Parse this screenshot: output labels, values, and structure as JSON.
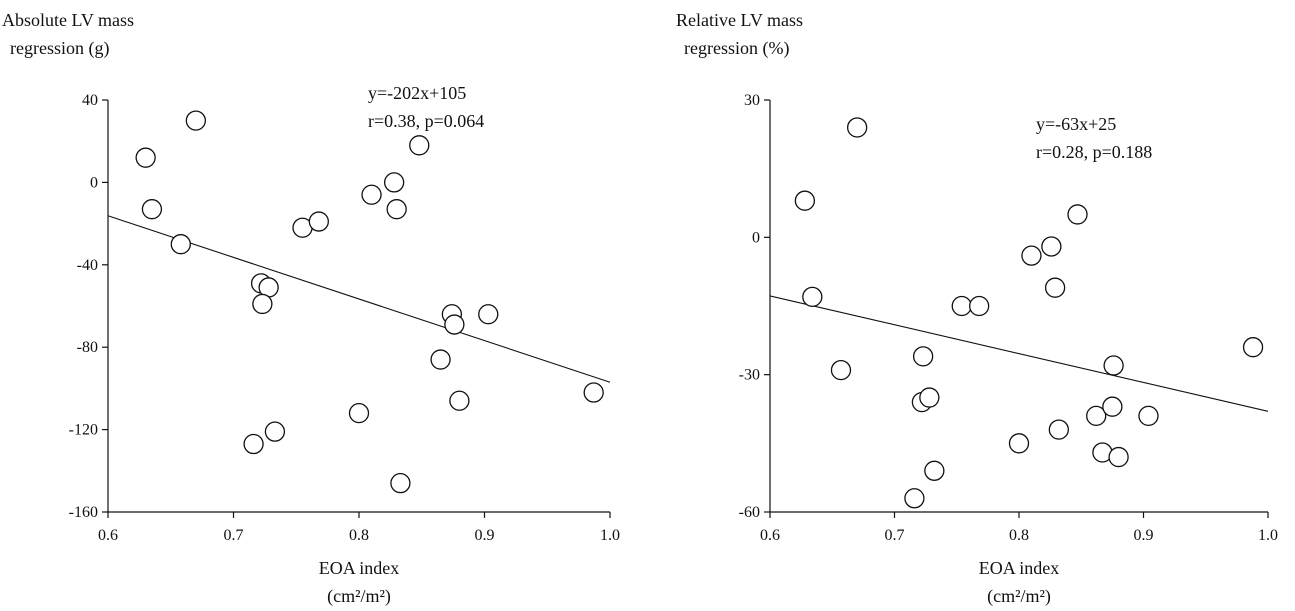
{
  "chart_data": [
    {
      "type": "scatter",
      "ylabel_lines": [
        "Absolute LV mass",
        "regression (g)"
      ],
      "xlabel_lines": [
        "EOA index",
        "(cm²/m²)"
      ],
      "xlim": [
        0.6,
        1.0
      ],
      "ylim": [
        -160,
        40
      ],
      "xticks": [
        0.6,
        0.7,
        0.8,
        0.9,
        1.0
      ],
      "xtick_labels": [
        "0.6",
        "0.7",
        "0.8",
        "0.9",
        "1.0"
      ],
      "yticks": [
        -160,
        -120,
        -80,
        -40,
        0,
        40
      ],
      "ytick_labels": [
        "-160",
        "-120",
        "-80",
        "-40",
        "0",
        "40"
      ],
      "annotation_lines": [
        "y=-202x+105",
        "r=0.38, p=0.064"
      ],
      "regression": {
        "slope": -202,
        "intercept": 105
      },
      "x": [
        0.63,
        0.67,
        0.635,
        0.658,
        0.722,
        0.728,
        0.723,
        0.716,
        0.733,
        0.755,
        0.768,
        0.8,
        0.81,
        0.828,
        0.83,
        0.833,
        0.848,
        0.865,
        0.874,
        0.876,
        0.88,
        0.903,
        0.987
      ],
      "y": [
        12,
        30,
        -13,
        -30,
        -49,
        -51,
        -59,
        -127,
        -121,
        -22,
        -19,
        -112,
        -6,
        0,
        -13,
        -146,
        18,
        -86,
        -64,
        -69,
        -106,
        -64,
        -102
      ]
    },
    {
      "type": "scatter",
      "ylabel_lines": [
        "Relative LV mass",
        "regression (%)"
      ],
      "xlabel_lines": [
        "EOA index",
        "(cm²/m²)"
      ],
      "xlim": [
        0.6,
        1.0
      ],
      "ylim": [
        -60,
        30
      ],
      "xticks": [
        0.6,
        0.7,
        0.8,
        0.9,
        1.0
      ],
      "xtick_labels": [
        "0.6",
        "0.7",
        "0.8",
        "0.9",
        "1.0"
      ],
      "yticks": [
        -60,
        -30,
        0,
        30
      ],
      "ytick_labels": [
        "-60",
        "-30",
        "0",
        "30"
      ],
      "annotation_lines": [
        "y=-63x+25",
        "r=0.28, p=0.188"
      ],
      "regression": {
        "slope": -63,
        "intercept": 25
      },
      "x": [
        0.628,
        0.67,
        0.634,
        0.657,
        0.723,
        0.722,
        0.728,
        0.716,
        0.732,
        0.754,
        0.768,
        0.8,
        0.81,
        0.826,
        0.829,
        0.832,
        0.847,
        0.862,
        0.867,
        0.875,
        0.876,
        0.88,
        0.904,
        0.988
      ],
      "y": [
        8,
        24,
        -13,
        -29,
        -26,
        -36,
        -35,
        -57,
        -51,
        -15,
        -15,
        -45,
        -4,
        -2,
        -11,
        -42,
        5,
        -39,
        -47,
        -37,
        -28,
        -48,
        -39,
        -24
      ]
    }
  ]
}
